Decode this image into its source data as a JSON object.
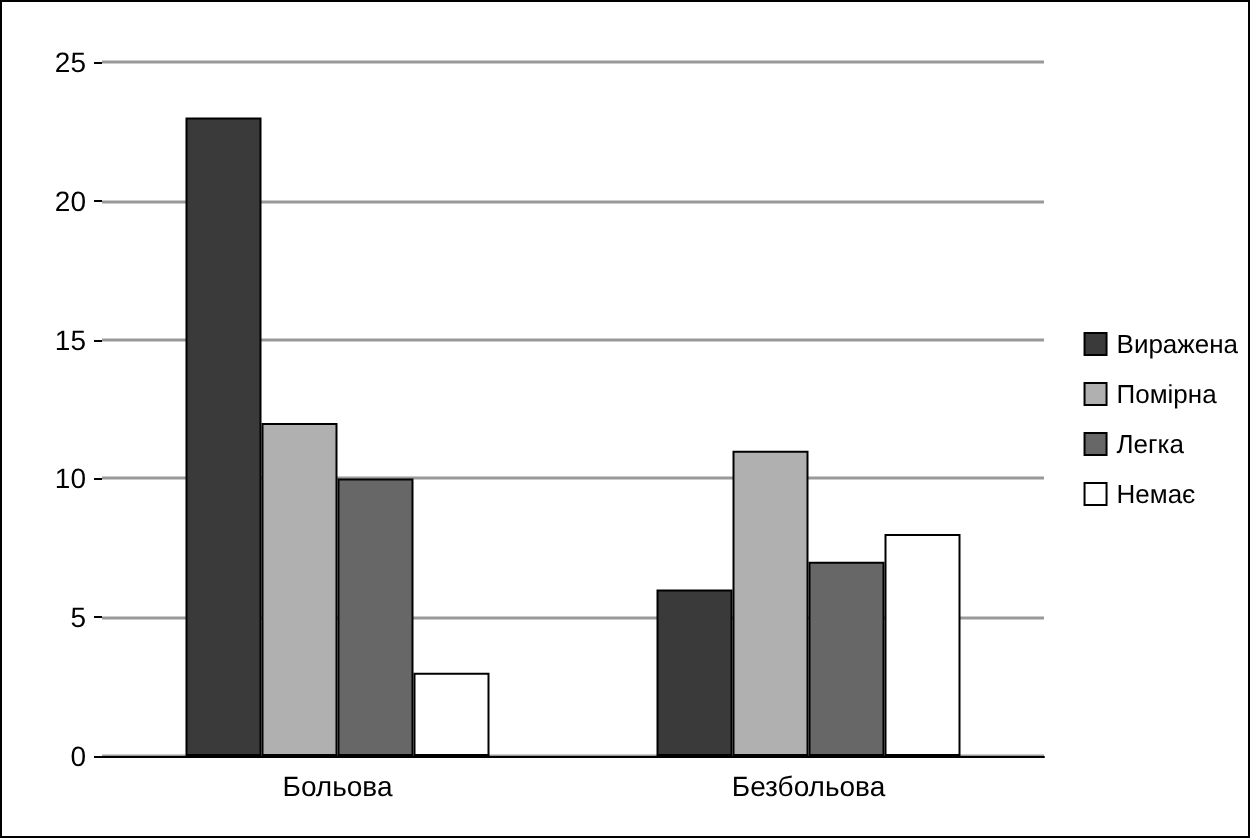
{
  "chart_data": {
    "type": "bar",
    "categories": [
      "Больова",
      "Безбольова"
    ],
    "series": [
      {
        "name": "Виражена",
        "color": "#3a3a3a",
        "values": [
          23,
          6
        ]
      },
      {
        "name": "Помірна",
        "color": "#b0b0b0",
        "values": [
          12,
          11
        ]
      },
      {
        "name": "Легка",
        "color": "#676767",
        "values": [
          10,
          7
        ]
      },
      {
        "name": "Немає",
        "color": "#ffffff",
        "values": [
          3,
          8
        ]
      }
    ],
    "ylim": [
      0,
      25
    ],
    "yticks": [
      0,
      5,
      10,
      15,
      20,
      25
    ],
    "grid": "y",
    "legend": "right"
  }
}
